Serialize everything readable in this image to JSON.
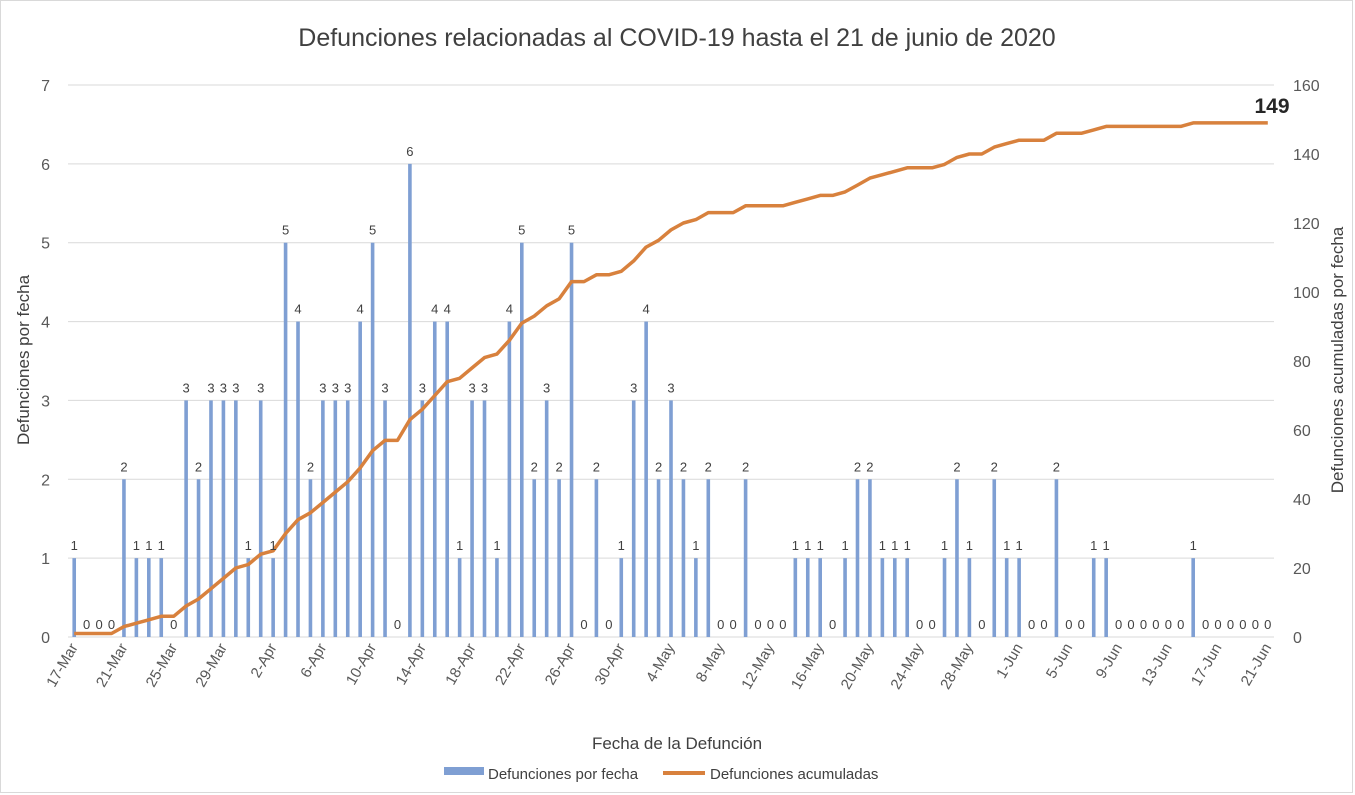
{
  "chart_data": {
    "type": "bar+line",
    "title": "Defunciones relacionadas al COVID-19 hasta el 21 de junio de 2020",
    "xlabel": "Fecha de la Defunción",
    "ylabel_left": "Defunciones por fecha",
    "ylabel_right": "Defunciones acumuladas por fecha",
    "ylim_left": [
      0,
      7
    ],
    "ylim_right": [
      0,
      160
    ],
    "yticks_left": [
      "0",
      "1",
      "2",
      "3",
      "4",
      "5",
      "6",
      "7"
    ],
    "yticks_right": [
      "0",
      "20",
      "40",
      "60",
      "80",
      "100",
      "120",
      "140",
      "160"
    ],
    "grid": true,
    "legend_position": "bottom",
    "x_tick_labels": [
      "17-Mar",
      "21-Mar",
      "25-Mar",
      "29-Mar",
      "2-Apr",
      "6-Apr",
      "10-Apr",
      "14-Apr",
      "18-Apr",
      "22-Apr",
      "26-Apr",
      "30-Apr",
      "4-May",
      "8-May",
      "12-May",
      "16-May",
      "20-May",
      "24-May",
      "28-May",
      "1-Jun",
      "5-Jun",
      "9-Jun",
      "13-Jun",
      "17-Jun",
      "21-Jun"
    ],
    "values": [
      1,
      0,
      0,
      0,
      2,
      1,
      1,
      1,
      0,
      3,
      2,
      3,
      3,
      3,
      1,
      3,
      1,
      5,
      4,
      2,
      3,
      3,
      3,
      4,
      5,
      3,
      0,
      6,
      3,
      4,
      4,
      1,
      3,
      3,
      1,
      4,
      5,
      2,
      3,
      2,
      5,
      0,
      2,
      0,
      1,
      3,
      4,
      2,
      3,
      2,
      1,
      2,
      0,
      0,
      2,
      0,
      0,
      0,
      1,
      1,
      1,
      0,
      1,
      2,
      2,
      1,
      1,
      1,
      0,
      0,
      1,
      2,
      1,
      0,
      2,
      1,
      1,
      0,
      0,
      2,
      0,
      0,
      1,
      1,
      0,
      0,
      0,
      0,
      0,
      0,
      1,
      0,
      0,
      0,
      0,
      0,
      0
    ],
    "cumulative_label": "149",
    "series": [
      {
        "name": "Defunciones por fecha",
        "type": "bar",
        "color": "#7f9fd3"
      },
      {
        "name": "Defunciones acumuladas",
        "type": "line",
        "color": "#d8813d"
      }
    ]
  }
}
